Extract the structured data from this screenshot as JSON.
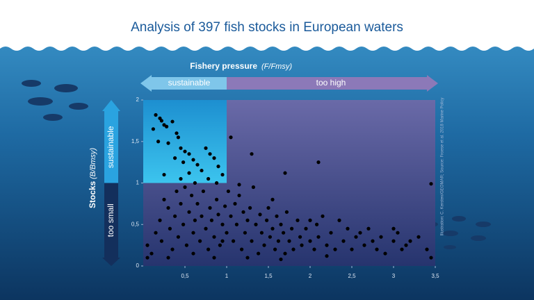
{
  "chart_data": {
    "type": "scatter",
    "title": "Analysis of 397 fish stocks in European waters",
    "x_label": "Fishery pressure",
    "x_unit": "(F/Fmsy)",
    "y_label": "Stocks",
    "y_unit": "(B/Bmsy)",
    "x_zone_labels": [
      "sustainable",
      "too high"
    ],
    "y_zone_labels": [
      "sustainable",
      "too small"
    ],
    "credit": "Illustration: C. Kersten/GEOMAR; Source: Froese et al. 2018 Marine Policy",
    "color": "#000000",
    "xlim": [
      0,
      3.5
    ],
    "ylim": [
      0,
      2
    ],
    "xticks": [
      {
        "value": 0.5,
        "label": "0,5"
      },
      1,
      {
        "value": 1.5,
        "label": "1,5"
      },
      2,
      {
        "value": 2.5,
        "label": "2,5"
      },
      3,
      {
        "value": 3.5,
        "label": "3,5"
      }
    ],
    "yticks": [
      0,
      {
        "value": 0.5,
        "label": "0,5"
      },
      1,
      {
        "value": 1.5,
        "label": "1,5"
      },
      2
    ],
    "x": [
      0.15,
      0.2,
      0.22,
      0.25,
      0.28,
      0.12,
      0.35,
      0.4,
      0.42,
      0.18,
      0.3,
      0.45,
      0.5,
      0.55,
      0.38,
      0.48,
      0.6,
      0.65,
      0.75,
      0.8,
      0.85,
      0.7,
      0.9,
      0.95,
      0.55,
      0.45,
      0.62,
      0.78,
      0.88,
      0.25,
      1.05,
      1.3,
      1.7,
      2.1,
      3.45,
      0.05,
      0.05,
      0.1,
      0.15,
      0.2,
      0.22,
      0.25,
      0.3,
      0.32,
      0.35,
      0.38,
      0.4,
      0.42,
      0.45,
      0.48,
      0.5,
      0.52,
      0.55,
      0.58,
      0.6,
      0.62,
      0.65,
      0.68,
      0.7,
      0.72,
      0.75,
      0.78,
      0.8,
      0.82,
      0.85,
      0.88,
      0.9,
      0.92,
      0.95,
      0.98,
      1.0,
      1.02,
      1.05,
      1.08,
      1.1,
      1.12,
      1.15,
      1.18,
      1.2,
      1.22,
      1.25,
      1.28,
      1.3,
      1.32,
      1.35,
      1.38,
      1.4,
      1.42,
      1.45,
      1.48,
      1.5,
      1.52,
      1.55,
      1.58,
      1.6,
      1.62,
      1.65,
      1.68,
      1.7,
      1.72,
      1.75,
      1.78,
      1.8,
      1.85,
      1.88,
      1.9,
      1.95,
      2.0,
      2.05,
      2.08,
      2.1,
      2.15,
      2.2,
      2.25,
      2.3,
      2.35,
      2.4,
      2.45,
      2.5,
      2.55,
      2.6,
      2.65,
      2.7,
      2.75,
      2.8,
      2.85,
      2.9,
      3.0,
      3.05,
      3.1,
      3.15,
      3.2,
      3.3,
      3.4,
      3.45,
      3.0,
      2.0,
      1.55,
      1.15,
      0.95,
      0.6,
      0.3,
      0.85,
      1.25,
      1.65,
      2.2
    ],
    "y": [
      1.82,
      1.78,
      1.75,
      1.7,
      1.68,
      1.65,
      1.74,
      1.6,
      1.55,
      1.5,
      1.48,
      1.42,
      1.38,
      1.35,
      1.3,
      1.25,
      1.28,
      1.22,
      1.42,
      1.35,
      1.3,
      1.15,
      1.2,
      1.1,
      1.12,
      1.05,
      1.0,
      1.05,
      1.0,
      1.1,
      1.55,
      1.35,
      1.12,
      1.25,
      0.99,
      0.25,
      0.1,
      0.15,
      0.4,
      0.55,
      0.3,
      0.8,
      0.7,
      0.45,
      0.2,
      0.6,
      0.9,
      0.35,
      0.75,
      0.5,
      0.95,
      0.25,
      0.65,
      0.85,
      0.4,
      0.55,
      0.75,
      0.3,
      0.6,
      0.9,
      0.45,
      0.2,
      0.7,
      0.55,
      0.35,
      0.8,
      0.62,
      0.25,
      0.5,
      0.72,
      0.4,
      0.9,
      0.6,
      0.3,
      0.75,
      0.5,
      0.85,
      0.2,
      0.65,
      0.4,
      0.55,
      0.7,
      0.3,
      0.95,
      0.5,
      0.15,
      0.62,
      0.4,
      0.25,
      0.55,
      0.7,
      0.35,
      0.45,
      0.2,
      0.6,
      0.3,
      0.5,
      0.4,
      0.15,
      0.65,
      0.3,
      0.45,
      0.2,
      0.55,
      0.35,
      0.25,
      0.45,
      0.3,
      0.2,
      0.5,
      0.35,
      0.6,
      0.25,
      0.4,
      0.2,
      0.55,
      0.3,
      0.45,
      0.2,
      0.35,
      0.4,
      0.25,
      0.45,
      0.3,
      0.2,
      0.35,
      0.15,
      0.3,
      0.4,
      0.2,
      0.25,
      0.3,
      0.35,
      0.2,
      0.1,
      0.45,
      0.55,
      0.8,
      0.98,
      0.3,
      0.15,
      0.1,
      0.1,
      0.1,
      0.08,
      0.12
    ]
  }
}
